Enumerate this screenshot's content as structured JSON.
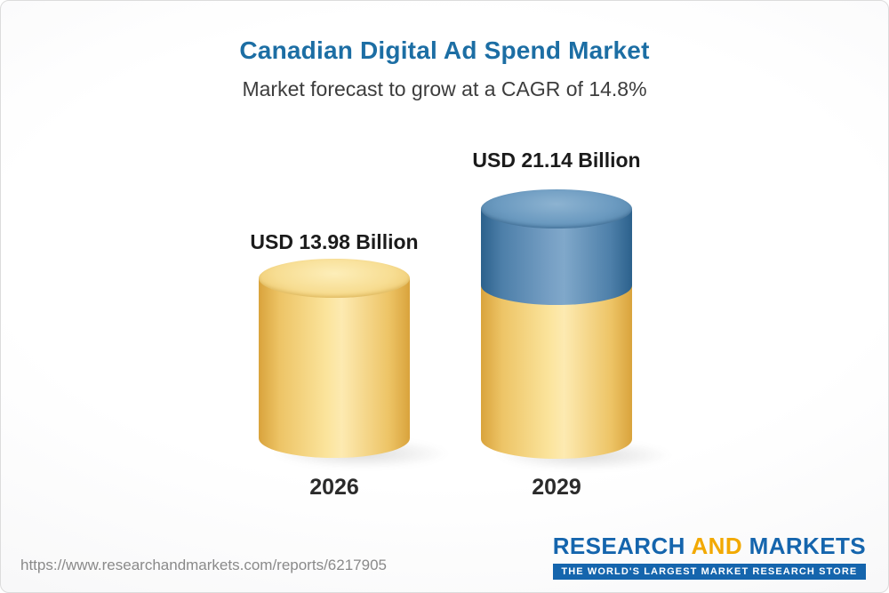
{
  "header": {
    "title": "Canadian Digital Ad Spend Market",
    "subtitle": "Market forecast to grow at a CAGR of 14.8%"
  },
  "chart_data": {
    "type": "bar",
    "categories": [
      "2026",
      "2029"
    ],
    "values": [
      13.98,
      21.14
    ],
    "value_labels": [
      "USD 13.98 Billion",
      "USD 21.14 Billion"
    ],
    "unit": "USD Billion",
    "cagr_percent": 14.8,
    "title": "Canadian Digital Ad Spend Market",
    "subtitle": "Market forecast to grow at a CAGR of 14.8%",
    "legend": "none",
    "grid": "off",
    "style": "3d-cylinder",
    "colors": {
      "bar_2026": "#f5d27c",
      "bar_2029_lower": "#f5d27c",
      "bar_2029_upper": "#5585ad",
      "title_text": "#1c6ea4",
      "subtitle_text": "#3d3d3d"
    }
  },
  "footer": {
    "url": "https://www.researchandmarkets.com/reports/6217905",
    "logo": {
      "word_research": "RESEARCH",
      "word_and": "AND",
      "word_markets": "MARKETS",
      "tagline": "THE WORLD'S LARGEST MARKET RESEARCH STORE"
    }
  }
}
